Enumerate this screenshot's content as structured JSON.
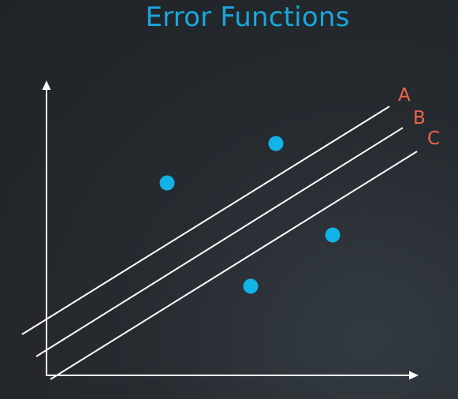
{
  "title": "Error Functions",
  "lines": [
    {
      "label": "A"
    },
    {
      "label": "B"
    },
    {
      "label": "C"
    }
  ],
  "points_count": 4,
  "colors": {
    "title": "#1aa6dc",
    "point": "#12b3e6",
    "label": "#f0654a",
    "lines": "#ffffff",
    "background": "#24282d"
  }
}
